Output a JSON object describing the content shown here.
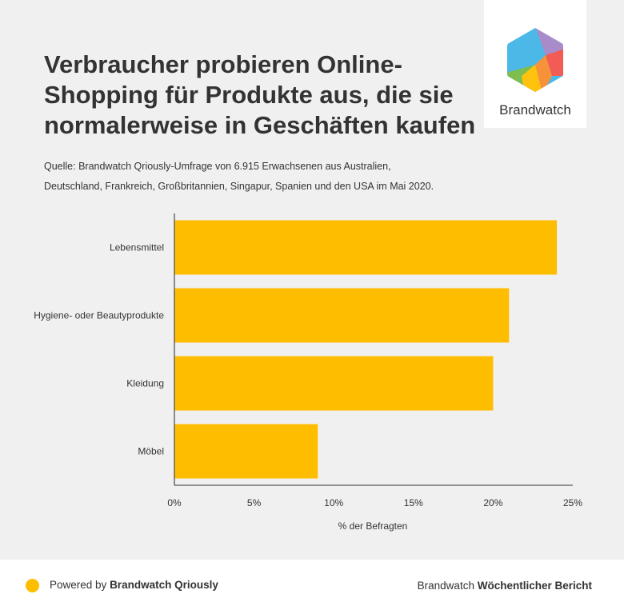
{
  "title_lines": [
    "Verbraucher probieren Online-",
    "Shopping für Produkte aus, die sie",
    "normalerweise in Geschäften kaufen"
  ],
  "source_lines": [
    "Quelle: Brandwatch Qriously-Umfrage von 6.915 Erwachsenen aus Australien,",
    "Deutschland, Frankreich, Großbritannien, Singapur, Spanien und den USA im Mai 2020."
  ],
  "logo": {
    "text": "Brandwatch"
  },
  "footer": {
    "powered_prefix": "Powered by",
    "powered_brand": "Brandwatch Qriously",
    "report_prefix": "Brandwatch",
    "report_name": "Wöchentlicher Bericht"
  },
  "colors": {
    "bar": "#FFBD00",
    "background": "#F0F0F0",
    "text": "#333333",
    "axis": "#555555"
  },
  "chart_data": {
    "type": "bar",
    "orientation": "horizontal",
    "categories": [
      "Lebensmittel",
      "Hygiene- oder Beautyprodukte",
      "Kleidung",
      "Möbel"
    ],
    "values": [
      24,
      21,
      20,
      9
    ],
    "xlabel": "% der Befragten",
    "ylabel": "",
    "xlim": [
      0,
      25
    ],
    "xticks": [
      0,
      5,
      10,
      15,
      20,
      25
    ],
    "xtick_labels": [
      "0%",
      "5%",
      "10%",
      "15%",
      "20%",
      "25%"
    ]
  }
}
